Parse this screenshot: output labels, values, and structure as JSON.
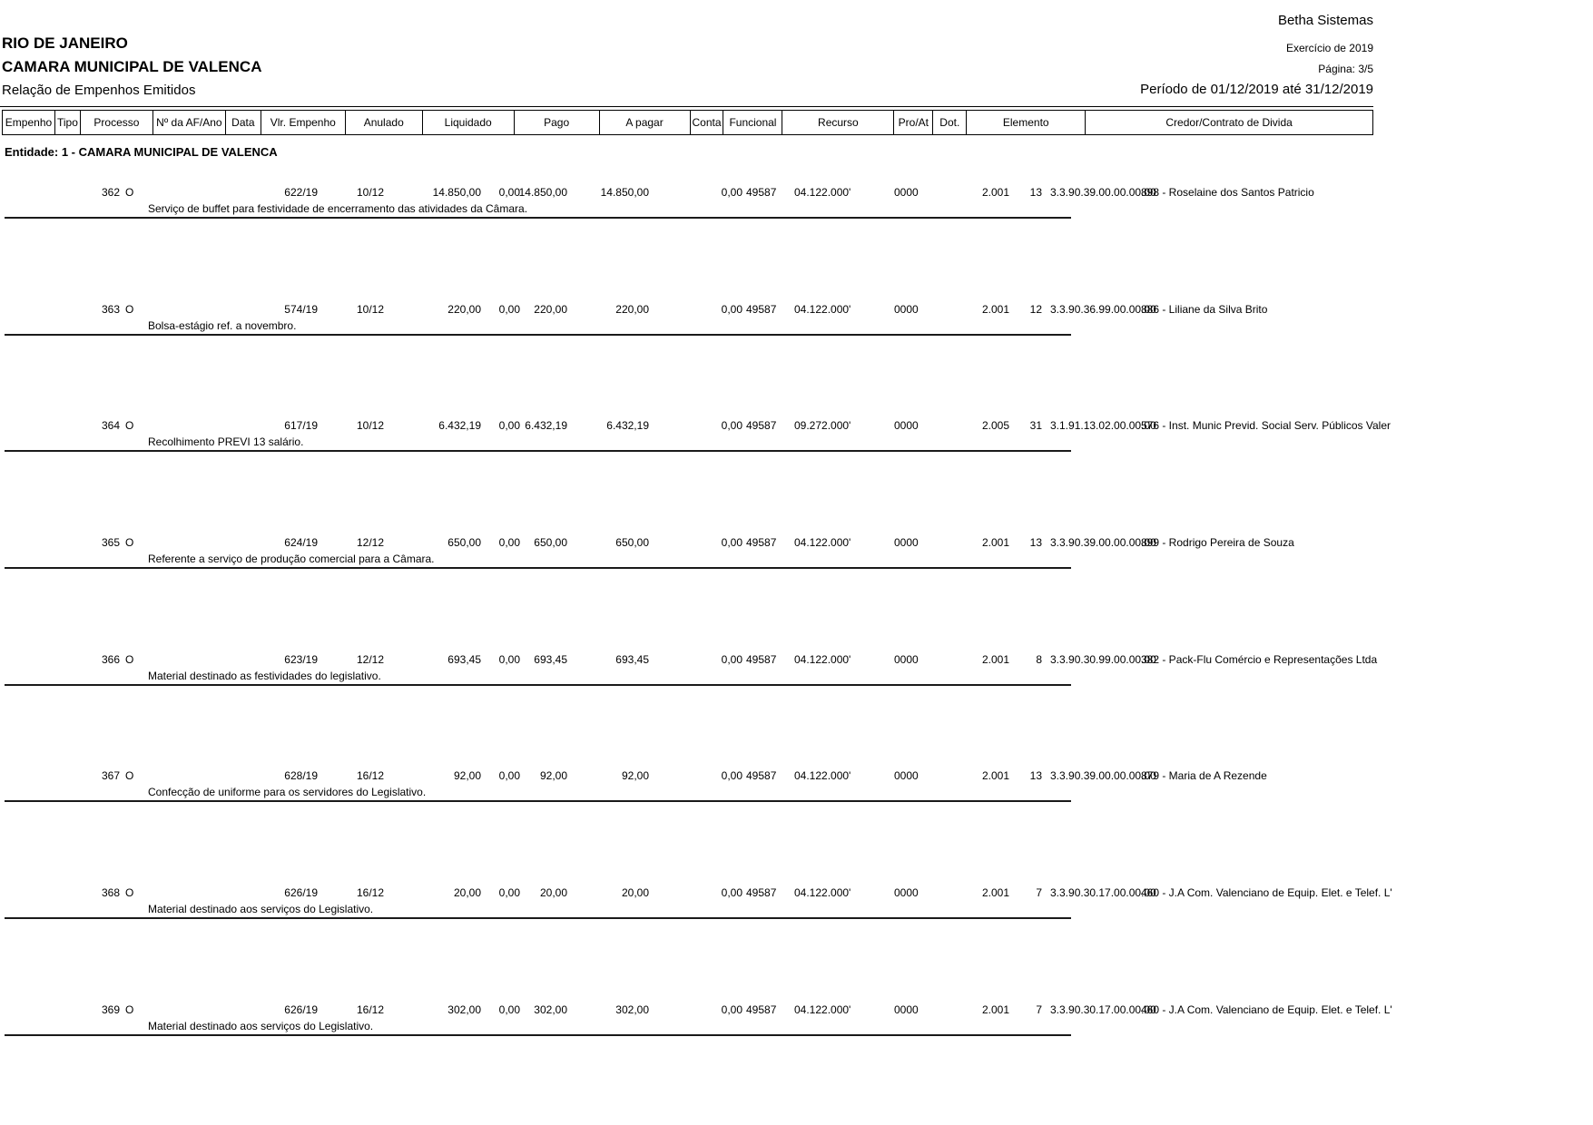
{
  "report_header": {
    "company": "Betha Sistemas",
    "state": "RIO DE JANEIRO",
    "entity_name": "CAMARA MUNICIPAL DE VALENCA",
    "report_title": "Relação de Empenhos Emitidos",
    "exercise": "Exercício de 2019",
    "page": "Página: 3/5",
    "period": "Período de 01/12/2019 até 31/12/2019"
  },
  "table": {
    "columns": [
      "Empenho",
      "Tipo",
      "Processo",
      "Nº da AF/Ano",
      "Data",
      "Vlr. Empenho",
      "Anulado",
      "Liquidado",
      "Pago",
      "A pagar",
      "Conta",
      "Funcional",
      "Recurso",
      "Pro/At",
      "Dot.",
      "Elemento",
      "Credor/Contrato de Divida"
    ],
    "group_label": "Entidade: 1 - CAMARA MUNICIPAL DE VALENCA",
    "rows": [
      {
        "empenho": "362",
        "tipo": "O",
        "processo": "622/19",
        "af": "",
        "data": "10/12",
        "vlr": "14.850,00",
        "anulado": "0,00",
        "liquidado": "14.850,00",
        "pago": "14.850,00",
        "apagar": "0,00",
        "conta": "49587",
        "funcional": "04.122.000'",
        "recurso": "0000",
        "proat": "2.001",
        "dot": "13",
        "elemento": "3.3.90.39.00.00.00.00",
        "credor": "898 - Roselaine dos Santos Patricio",
        "descricao": "Serviço de buffet para festividade de encerramento das atividades da Câmara."
      },
      {
        "empenho": "363",
        "tipo": "O",
        "processo": "574/19",
        "af": "",
        "data": "10/12",
        "vlr": "220,00",
        "anulado": "0,00",
        "liquidado": "220,00",
        "pago": "220,00",
        "apagar": "0,00",
        "conta": "49587",
        "funcional": "04.122.000'",
        "recurso": "0000",
        "proat": "2.001",
        "dot": "12",
        "elemento": "3.3.90.36.99.00.00.00",
        "credor": "886 - Liliane da Silva Brito",
        "descricao": "Bolsa-estágio ref. a novembro."
      },
      {
        "empenho": "364",
        "tipo": "O",
        "processo": "617/19",
        "af": "",
        "data": "10/12",
        "vlr": "6.432,19",
        "anulado": "0,00",
        "liquidado": "6.432,19",
        "pago": "6.432,19",
        "apagar": "0,00",
        "conta": "49587",
        "funcional": "09.272.000'",
        "recurso": "0000",
        "proat": "2.005",
        "dot": "31",
        "elemento": "3.1.91.13.02.00.00.00",
        "credor": "576 - Inst. Munic Previd. Social Serv. Públicos Valer",
        "descricao": "Recolhimento PREVI 13 salário."
      },
      {
        "empenho": "365",
        "tipo": "O",
        "processo": "624/19",
        "af": "",
        "data": "12/12",
        "vlr": "650,00",
        "anulado": "0,00",
        "liquidado": "650,00",
        "pago": "650,00",
        "apagar": "0,00",
        "conta": "49587",
        "funcional": "04.122.000'",
        "recurso": "0000",
        "proat": "2.001",
        "dot": "13",
        "elemento": "3.3.90.39.00.00.00.00",
        "credor": "899 - Rodrigo Pereira de Souza",
        "descricao": "Referente a serviço de produção comercial para a Câmara."
      },
      {
        "empenho": "366",
        "tipo": "O",
        "processo": "623/19",
        "af": "",
        "data": "12/12",
        "vlr": "693,45",
        "anulado": "0,00",
        "liquidado": "693,45",
        "pago": "693,45",
        "apagar": "0,00",
        "conta": "49587",
        "funcional": "04.122.000'",
        "recurso": "0000",
        "proat": "2.001",
        "dot": "8",
        "elemento": "3.3.90.30.99.00.00.00",
        "credor": "382 - Pack-Flu Comércio e Representações Ltda",
        "descricao": "Material destinado as festividades do legislativo."
      },
      {
        "empenho": "367",
        "tipo": "O",
        "processo": "628/19",
        "af": "",
        "data": "16/12",
        "vlr": "92,00",
        "anulado": "0,00",
        "liquidado": "92,00",
        "pago": "92,00",
        "apagar": "0,00",
        "conta": "49587",
        "funcional": "04.122.000'",
        "recurso": "0000",
        "proat": "2.001",
        "dot": "13",
        "elemento": "3.3.90.39.00.00.00.00",
        "credor": "879 - Maria de A Rezende",
        "descricao": "Confecção de uniforme para os servidores do Legislativo."
      },
      {
        "empenho": "368",
        "tipo": "O",
        "processo": "626/19",
        "af": "",
        "data": "16/12",
        "vlr": "20,00",
        "anulado": "0,00",
        "liquidado": "20,00",
        "pago": "20,00",
        "apagar": "0,00",
        "conta": "49587",
        "funcional": "04.122.000'",
        "recurso": "0000",
        "proat": "2.001",
        "dot": "7",
        "elemento": "3.3.90.30.17.00.00.00",
        "credor": "460 - J.A Com. Valenciano de Equip. Elet. e Telef. L'",
        "descricao": "Material destinado aos serviços do Legislativo."
      },
      {
        "empenho": "369",
        "tipo": "O",
        "processo": "626/19",
        "af": "",
        "data": "16/12",
        "vlr": "302,00",
        "anulado": "0,00",
        "liquidado": "302,00",
        "pago": "302,00",
        "apagar": "0,00",
        "conta": "49587",
        "funcional": "04.122.000'",
        "recurso": "0000",
        "proat": "2.001",
        "dot": "7",
        "elemento": "3.3.90.30.17.00.00.00",
        "credor": "460 - J.A Com. Valenciano de Equip. Elet. e Telef. L'",
        "descricao": "Material destinado aos serviços do Legislativo."
      }
    ]
  }
}
